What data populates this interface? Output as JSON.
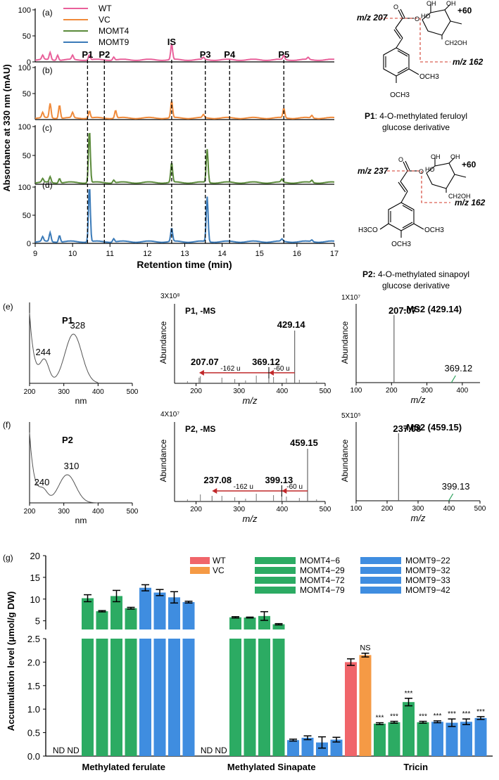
{
  "panel_labels": {
    "top": [
      "(a)",
      "(b)",
      "(c)",
      "(d)"
    ],
    "e": "(e)",
    "f": "(f)",
    "g": "(g)"
  },
  "chromatogram": {
    "ylabel": "Absorbance at 330 nm (mAU)",
    "xlabel": "Retention time (min)",
    "x_ticks": [
      "9",
      "10",
      "11",
      "12",
      "13",
      "14",
      "15",
      "16",
      "17"
    ],
    "y_ticks": [
      "0",
      "50",
      "100"
    ],
    "legend": [
      {
        "name": "WT",
        "color": "#e9609a"
      },
      {
        "name": "VC",
        "color": "#f08a3a"
      },
      {
        "name": "MOMT4",
        "color": "#5a8a3a"
      },
      {
        "name": "MOMT9",
        "color": "#3a7ab8"
      }
    ],
    "peak_labels": [
      "P1",
      "P2",
      "IS",
      "P3",
      "P4",
      "P5"
    ]
  },
  "structures": {
    "p1": {
      "mz_left": "m/z 207",
      "plus": "+60",
      "mz_right": "m/z 162",
      "sub": "OCH3",
      "caption_label": "P1",
      "caption_text": ": 4-O-methylated feruloyl",
      "caption_line2": "glucose derivative",
      "oh": "OH",
      "ho": "HO",
      "ch2oh": "CH2OH",
      "o": "O"
    },
    "p2": {
      "mz_left": "m/z 237",
      "plus": "+60",
      "mz_right": "m/z 162",
      "sub1": "H3CO",
      "sub2": "OCH3",
      "sub3": "OCH3",
      "caption_label": "P2:",
      "caption_text": " 4-O-methylated sinapoyl",
      "caption_line2": "glucose derivative",
      "oh": "OH",
      "ho": "HO",
      "ch2oh": "CH2OH",
      "o": "O"
    }
  },
  "uv": {
    "p1": {
      "title": "P1",
      "peaks": [
        "244",
        "328"
      ],
      "xlabel": "nm",
      "x_ticks": [
        "200",
        "300",
        "400",
        "500"
      ]
    },
    "p2": {
      "title": "P2",
      "peaks": [
        "240",
        "310"
      ],
      "xlabel": "nm",
      "x_ticks": [
        "200",
        "300",
        "400",
        "500"
      ]
    }
  },
  "ms": {
    "p1": {
      "scale": "3X10⁸",
      "title": "P1, -MS",
      "peak_main": "429.14",
      "peak_frag1": "207.07",
      "peak_frag2": "369.12",
      "loss1": "-162 u",
      "loss2": "-60 u",
      "ylabel": "Abundance",
      "xlabel": "m/z",
      "x_ticks": [
        "200",
        "300",
        "400",
        "500"
      ]
    },
    "p2": {
      "scale": "4X10⁷",
      "title": "P2, -MS",
      "peak_main": "459.15",
      "peak_frag1": "237.08",
      "peak_frag2": "399.13",
      "loss1": "-162 u",
      "loss2": "-60 u",
      "ylabel": "Abundance",
      "xlabel": "m/z",
      "x_ticks": [
        "200",
        "300",
        "400",
        "500"
      ]
    }
  },
  "ms2": {
    "p1": {
      "scale": "1X10⁷",
      "title": "-MS2 (429.14)",
      "peak_main": "207.07",
      "peak_minor": "369.12",
      "ylabel": "Abundance",
      "xlabel": "m/z",
      "x_ticks": [
        "100",
        "200",
        "300",
        "400"
      ]
    },
    "p2": {
      "scale": "5X10⁵",
      "title": "-MS2 (459.15)",
      "peak_main": "237.08",
      "peak_minor": "399.13",
      "ylabel": "Abundance",
      "xlabel": "m/z",
      "x_ticks": [
        "100",
        "200",
        "300",
        "400",
        "500"
      ]
    }
  },
  "chart_data": {
    "type": "bar",
    "ylabel": "Accumulation level (μmol/g DW)",
    "categories": [
      "Methylated ferulate",
      "Methylated Sinapate",
      "Tricin"
    ],
    "series_names": [
      "WT",
      "VC",
      "MOMT4−6",
      "MOMT4−29",
      "MOMT4−72",
      "MOMT4−79",
      "MOMT9−22",
      "MOMT9−32",
      "MOMT9−33",
      "MOMT9−42"
    ],
    "colors": {
      "WT": "#f0656a",
      "VC": "#f59a45",
      "MOMT4": "#2cab63",
      "MOMT9": "#3f8de0"
    },
    "values": [
      [
        null,
        null,
        10.2,
        7.2,
        10.7,
        7.9,
        12.6,
        11.5,
        10.4,
        9.3
      ],
      [
        null,
        null,
        5.8,
        5.75,
        6.1,
        4.2,
        0.34,
        0.39,
        0.29,
        0.35
      ],
      [
        2.0,
        2.15,
        0.69,
        0.72,
        1.15,
        0.72,
        0.73,
        0.71,
        0.73,
        0.81
      ]
    ],
    "errors": [
      [
        0,
        0,
        0.8,
        0.15,
        1.3,
        0.2,
        0.7,
        0.7,
        1.3,
        0.2
      ],
      [
        0,
        0,
        0.15,
        0.1,
        1.0,
        0.15,
        0.02,
        0.04,
        0.12,
        0.05
      ],
      [
        0.07,
        0.04,
        0.02,
        0.02,
        0.08,
        0.02,
        0.02,
        0.08,
        0.06,
        0.03
      ]
    ],
    "annotations": [
      [
        "ND",
        "ND",
        "",
        "",
        "",
        "",
        "",
        "",
        "",
        ""
      ],
      [
        "ND",
        "ND",
        "",
        "",
        "",
        "",
        "",
        "",
        "",
        ""
      ],
      [
        "",
        "NS",
        "***",
        "***",
        "***",
        "***",
        "***",
        "***",
        "***",
        "***"
      ]
    ],
    "y_ticks_upper": [
      "5",
      "10",
      "15",
      "20"
    ],
    "y_ticks_lower": [
      "0.0",
      "0.5",
      "1.0",
      "1.5",
      "2.0",
      "2.5"
    ],
    "y_break": {
      "lower": [
        0,
        2.5
      ],
      "upper": [
        3,
        20
      ]
    }
  }
}
